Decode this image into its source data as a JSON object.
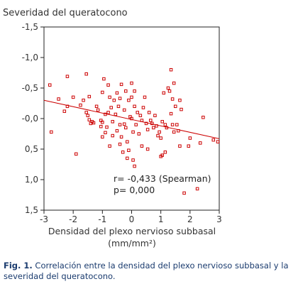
{
  "chart_data": {
    "type": "scatter",
    "ylabel": "Severidad del queratocono",
    "xlabel_line1": "Densidad del plexo nervioso subbasal",
    "xlabel_line2": "(mm/mm²)",
    "xlim": [
      -3,
      3
    ],
    "ylim": [
      1.5,
      -1.5
    ],
    "y_inverted": true,
    "x_ticks": [
      "-3",
      "-2",
      "-1",
      "0",
      "1",
      "2",
      "3"
    ],
    "y_ticks": [
      "-1,5",
      "-1,0",
      "-0,5",
      "-0,0",
      "0,5",
      "1,0",
      "1,5"
    ],
    "grid": false,
    "point_color": "#cc0000",
    "fit_color": "#cc0000",
    "fit_line": {
      "x": [
        -3,
        3
      ],
      "y": [
        -0.3,
        0.33
      ]
    },
    "stats": {
      "line1": "r= -0,433 (Spearman)",
      "line2": "p= 0,000"
    },
    "points": [
      [
        -2.8,
        -0.55
      ],
      [
        -2.75,
        0.22
      ],
      [
        -2.5,
        -0.32
      ],
      [
        -2.3,
        -0.12
      ],
      [
        -2.2,
        -0.2
      ],
      [
        -2.2,
        -0.69
      ],
      [
        -2.0,
        -0.35
      ],
      [
        -1.9,
        0.58
      ],
      [
        -1.75,
        -0.22
      ],
      [
        -1.65,
        -0.3
      ],
      [
        -1.55,
        -0.1
      ],
      [
        -1.55,
        -0.73
      ],
      [
        -1.5,
        -0.05
      ],
      [
        -1.45,
        -0.36
      ],
      [
        -1.45,
        0.02
      ],
      [
        -1.4,
        0.08
      ],
      [
        -1.35,
        0.05
      ],
      [
        -1.3,
        0.07
      ],
      [
        -1.2,
        -0.2
      ],
      [
        -1.15,
        -0.14
      ],
      [
        -1.05,
        0.03
      ],
      [
        -1.05,
        0.13
      ],
      [
        -1.0,
        -0.43
      ],
      [
        -1.0,
        0.06
      ],
      [
        -1.0,
        0.3
      ],
      [
        -0.95,
        -0.65
      ],
      [
        -0.9,
        -0.07
      ],
      [
        -0.9,
        0.23
      ],
      [
        -0.85,
        0.14
      ],
      [
        -0.8,
        -0.55
      ],
      [
        -0.8,
        -0.1
      ],
      [
        -0.75,
        -0.35
      ],
      [
        -0.75,
        0.45
      ],
      [
        -0.7,
        -0.18
      ],
      [
        -0.65,
        0.05
      ],
      [
        -0.65,
        0.28
      ],
      [
        -0.6,
        -0.3
      ],
      [
        -0.55,
        -0.07
      ],
      [
        -0.5,
        -0.42
      ],
      [
        -0.5,
        0.2
      ],
      [
        -0.45,
        -0.2
      ],
      [
        -0.4,
        -0.33
      ],
      [
        -0.4,
        0.1
      ],
      [
        -0.4,
        0.42
      ],
      [
        -0.35,
        -0.56
      ],
      [
        -0.35,
        0.3
      ],
      [
        -0.3,
        0.55
      ],
      [
        -0.25,
        -0.14
      ],
      [
        -0.25,
        0.09
      ],
      [
        -0.2,
        -0.45
      ],
      [
        -0.2,
        0.15
      ],
      [
        -0.15,
        0.38
      ],
      [
        -0.15,
        0.65
      ],
      [
        -0.1,
        -0.3
      ],
      [
        -0.1,
        0.52
      ],
      [
        -0.05,
        -0.03
      ],
      [
        0.0,
        0.0
      ],
      [
        0.0,
        -0.35
      ],
      [
        0.0,
        -0.58
      ],
      [
        0.05,
        0.68
      ],
      [
        0.05,
        0.22
      ],
      [
        0.1,
        -0.45
      ],
      [
        0.1,
        -0.2
      ],
      [
        0.1,
        0.78
      ],
      [
        0.15,
        0.1
      ],
      [
        0.2,
        -0.1
      ],
      [
        0.25,
        0.25
      ],
      [
        0.3,
        -0.05
      ],
      [
        0.35,
        0.03
      ],
      [
        0.35,
        0.45
      ],
      [
        0.4,
        -0.18
      ],
      [
        0.45,
        -0.35
      ],
      [
        0.5,
        0.08
      ],
      [
        0.55,
        0.18
      ],
      [
        0.55,
        0.5
      ],
      [
        0.6,
        -0.1
      ],
      [
        0.65,
        0.03
      ],
      [
        0.7,
        0.08
      ],
      [
        0.75,
        0.15
      ],
      [
        0.8,
        -0.05
      ],
      [
        0.85,
        0.12
      ],
      [
        0.9,
        0.28
      ],
      [
        0.95,
        0.22
      ],
      [
        1.0,
        0.32
      ],
      [
        1.0,
        0.62
      ],
      [
        1.05,
        0.05
      ],
      [
        1.05,
        0.6
      ],
      [
        1.1,
        -0.42
      ],
      [
        1.15,
        0.1
      ],
      [
        1.15,
        0.55
      ],
      [
        1.2,
        0.15
      ],
      [
        1.25,
        -0.5
      ],
      [
        1.3,
        -0.45
      ],
      [
        1.35,
        -0.8
      ],
      [
        1.35,
        -0.08
      ],
      [
        1.4,
        -0.32
      ],
      [
        1.4,
        0.1
      ],
      [
        1.45,
        -0.58
      ],
      [
        1.45,
        0.22
      ],
      [
        1.5,
        -0.2
      ],
      [
        1.55,
        0.1
      ],
      [
        1.6,
        0.2
      ],
      [
        1.65,
        -0.3
      ],
      [
        1.65,
        0.45
      ],
      [
        1.7,
        -0.15
      ],
      [
        1.8,
        1.22
      ],
      [
        1.95,
        0.45
      ],
      [
        2.0,
        0.32
      ],
      [
        2.25,
        1.15
      ],
      [
        2.35,
        0.4
      ],
      [
        2.45,
        -0.02
      ],
      [
        2.8,
        0.35
      ],
      [
        3.0,
        0.38
      ]
    ]
  },
  "caption": {
    "label": "Fig. 1.",
    "text": " Correlación entre la densidad del plexo nervioso subbasal y la severidad del queratocono."
  }
}
